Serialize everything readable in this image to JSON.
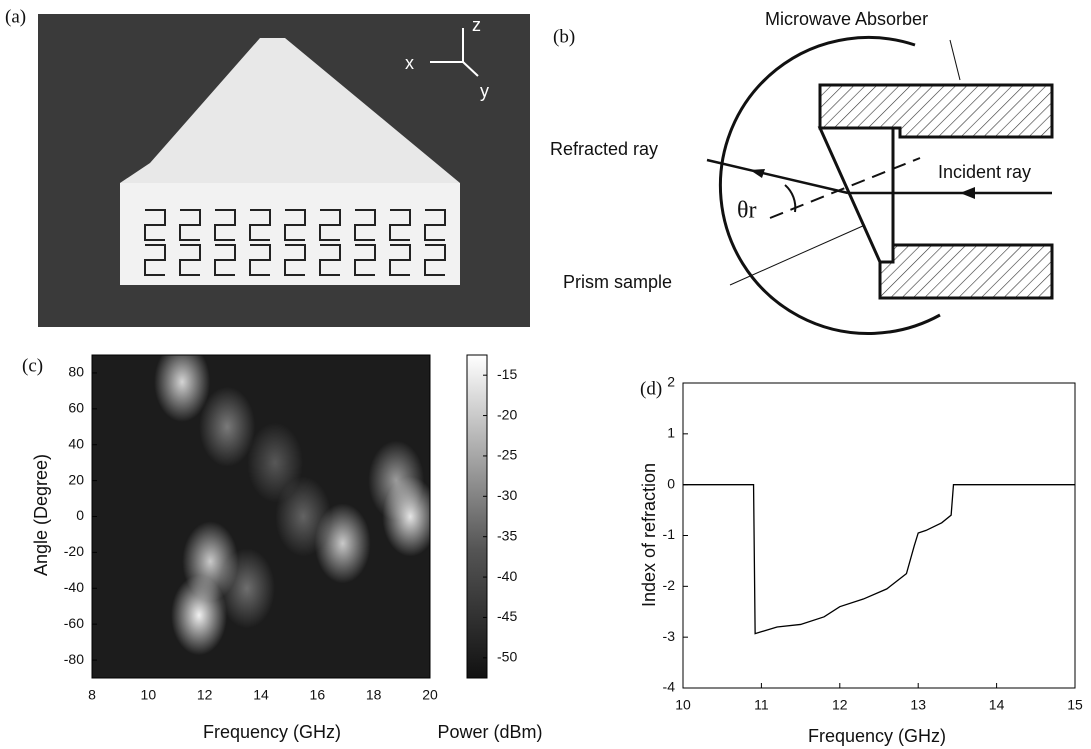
{
  "figure": {
    "a": {
      "label": "(a)",
      "axes": [
        "x",
        "y",
        "z"
      ]
    },
    "b": {
      "label": "(b)",
      "absorber": "Microwave Absorber",
      "refracted": "Refracted ray",
      "incident": "Incident ray",
      "prism": "Prism sample",
      "angle": "θr"
    }
  },
  "chart_data": [
    {
      "type": "heatmap",
      "label": "(c)",
      "xlabel": "Frequency (GHz)",
      "ylabel": "Angle (Degree)",
      "xlim": [
        8,
        20
      ],
      "xticks": [
        8,
        10,
        12,
        14,
        16,
        18,
        20
      ],
      "ylim": [
        -90,
        90
      ],
      "yticks": [
        80,
        60,
        40,
        20,
        0,
        -20,
        -40,
        -60,
        -80
      ],
      "x": [
        11.8,
        12.2,
        11.2,
        19.3,
        18.8,
        16.9,
        13.5,
        15.5,
        14.5,
        12.8
      ],
      "y": [
        -55,
        -25,
        75,
        0,
        20,
        -15,
        -40,
        0,
        30,
        50
      ],
      "values": [
        -15,
        -22,
        -20,
        -17,
        -30,
        -22,
        -38,
        -40,
        -42,
        -36
      ],
      "colorbar": {
        "label": "Power (dBm)",
        "lim": [
          -52.5,
          -12.5
        ],
        "ticks": [
          -15,
          -20,
          -25,
          -30,
          -35,
          -40,
          -45,
          -50
        ]
      }
    },
    {
      "type": "line",
      "label": "(d)",
      "xlabel": "Frequency (GHz)",
      "ylabel": "Index of refraction",
      "xlim": [
        10,
        15
      ],
      "xticks": [
        10,
        11,
        12,
        13,
        14,
        15
      ],
      "ylim": [
        -4,
        2
      ],
      "yticks": [
        2,
        1,
        0,
        -1,
        -2,
        -3,
        -4
      ],
      "color": "#000000",
      "x": [
        10,
        10.9,
        10.92,
        11.2,
        11.5,
        11.8,
        12,
        12.3,
        12.6,
        12.85,
        12.95,
        13.0,
        13.1,
        13.3,
        13.42,
        13.45,
        15
      ],
      "values": [
        0,
        0,
        -2.93,
        -2.8,
        -2.75,
        -2.6,
        -2.4,
        -2.25,
        -2.05,
        -1.75,
        -1.2,
        -0.95,
        -0.9,
        -0.75,
        -0.6,
        0,
        0
      ]
    }
  ]
}
